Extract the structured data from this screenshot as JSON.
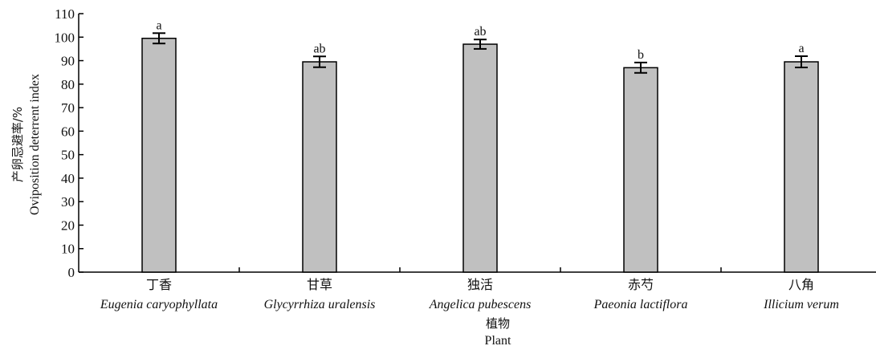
{
  "chart_data": {
    "type": "bar",
    "categories": [
      {
        "cn": "丁香",
        "latin": "Eugenia caryophyllata"
      },
      {
        "cn": "甘草",
        "latin": "Glycyrrhiza uralensis"
      },
      {
        "cn": "独活",
        "latin": "Angelica pubescens"
      },
      {
        "cn": "赤芍",
        "latin": "Paeonia lactiflora"
      },
      {
        "cn": "八角",
        "latin": "Illicium verum"
      }
    ],
    "values": [
      99.5,
      89.5,
      97,
      87,
      89.5
    ],
    "errors": [
      2.2,
      2.3,
      2.0,
      2.2,
      2.4
    ],
    "significance": [
      "a",
      "ab",
      "ab",
      "b",
      "a"
    ],
    "xlabel_cn": "植物",
    "xlabel": "Plant",
    "ylabel_cn": "产卵忌避率/%",
    "ylabel": "Oviposition deterrent index",
    "ylim": [
      0,
      110
    ],
    "yticks": [
      0,
      10,
      20,
      30,
      40,
      50,
      60,
      70,
      80,
      90,
      100,
      110
    ],
    "grid": false,
    "bar_color": "#c0c0c0",
    "bar_edge_color": "#000000"
  }
}
